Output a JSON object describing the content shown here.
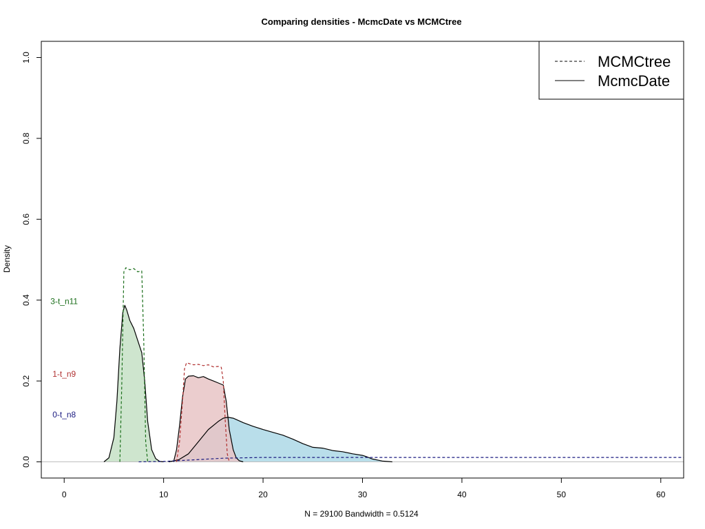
{
  "chart_data": {
    "type": "area",
    "title": "Comparing densities - McmcDate vs MCMCtree",
    "xlabel": "N = 29100   Bandwidth = 0.5124",
    "ylabel": "Density",
    "xlim": [
      -2.3,
      62.3
    ],
    "ylim": [
      -0.04,
      1.04
    ],
    "x_ticks": [
      0,
      10,
      20,
      30,
      40,
      50,
      60
    ],
    "y_ticks": [
      0.0,
      0.2,
      0.4,
      0.6,
      0.8,
      1.0
    ],
    "grid": false,
    "baseline": 0,
    "legend": {
      "position": "top-right",
      "entries": [
        {
          "label": "MCMCtree",
          "line": "dashed"
        },
        {
          "label": "McmcDate",
          "line": "solid"
        }
      ]
    },
    "annotations": [
      {
        "text": "3-t_n11",
        "x": 0,
        "y": 0.39,
        "color": "#1a6e1a"
      },
      {
        "text": "1-t_n9",
        "x": 0,
        "y": 0.21,
        "color": "#b03030"
      },
      {
        "text": "0-t_n8",
        "x": 0,
        "y": 0.11,
        "color": "#1a1a80"
      }
    ],
    "series": [
      {
        "id": "mcmcdate-0-t_n8",
        "node": "0-t_n8",
        "method": "McmcDate",
        "line": "solid",
        "stroke": "#000000",
        "fill": "#add8e6",
        "x": [
          10.5,
          11.5,
          12.5,
          13.5,
          14.5,
          15.5,
          16.0,
          16.5,
          17.0,
          18.0,
          19.0,
          20.0,
          21.0,
          22.0,
          23.0,
          24.0,
          25.0,
          26.0,
          27.0,
          28.0,
          29.0,
          30.0,
          30.5,
          31.0,
          32.0,
          33.0
        ],
        "y": [
          0.0,
          0.005,
          0.02,
          0.05,
          0.08,
          0.1,
          0.108,
          0.11,
          0.108,
          0.097,
          0.088,
          0.08,
          0.073,
          0.066,
          0.056,
          0.045,
          0.036,
          0.034,
          0.028,
          0.025,
          0.02,
          0.016,
          0.012,
          0.007,
          0.002,
          0.0
        ]
      },
      {
        "id": "mcmcdate-1-t_n9",
        "node": "1-t_n9",
        "method": "McmcDate",
        "line": "solid",
        "stroke": "#000000",
        "fill": "#e8c4c6",
        "x": [
          11.0,
          11.3,
          11.6,
          11.9,
          12.2,
          12.5,
          13.0,
          13.5,
          14.0,
          14.5,
          15.0,
          15.5,
          16.0,
          16.3,
          16.6,
          17.0,
          17.3,
          17.6,
          18.0
        ],
        "y": [
          0.0,
          0.03,
          0.09,
          0.16,
          0.205,
          0.212,
          0.213,
          0.208,
          0.211,
          0.205,
          0.2,
          0.195,
          0.19,
          0.15,
          0.08,
          0.03,
          0.01,
          0.003,
          0.0
        ]
      },
      {
        "id": "mcmcdate-3-t_n11",
        "node": "3-t_n11",
        "method": "McmcDate",
        "line": "solid",
        "stroke": "#000000",
        "fill": "#c5e0c5",
        "x": [
          4.0,
          4.5,
          5.0,
          5.3,
          5.6,
          5.9,
          6.1,
          6.3,
          6.6,
          7.0,
          7.4,
          7.8,
          8.1,
          8.4,
          8.8,
          9.2,
          9.6,
          10.0
        ],
        "y": [
          0.0,
          0.01,
          0.06,
          0.15,
          0.28,
          0.37,
          0.387,
          0.375,
          0.35,
          0.33,
          0.3,
          0.27,
          0.2,
          0.1,
          0.03,
          0.008,
          0.001,
          0.0
        ]
      },
      {
        "id": "mcmctree-0-t_n8",
        "node": "0-t_n8",
        "method": "MCMCtree",
        "line": "dashed",
        "stroke": "#1a1a80",
        "fill": "none",
        "x": [
          7.5,
          10.0,
          13.0,
          16.0,
          20.0,
          30.0,
          40.0,
          50.0,
          62.3
        ],
        "y": [
          0.0,
          0.001,
          0.005,
          0.009,
          0.011,
          0.011,
          0.011,
          0.011,
          0.011
        ]
      },
      {
        "id": "mcmctree-1-t_n9",
        "node": "1-t_n9",
        "method": "MCMCtree",
        "line": "dashed",
        "stroke": "#b03030",
        "fill": "none",
        "x": [
          11.3,
          11.6,
          11.9,
          12.1,
          12.3,
          13.0,
          13.5,
          14.0,
          14.5,
          15.0,
          15.5,
          15.8,
          16.0,
          16.2,
          16.4,
          16.6
        ],
        "y": [
          0.0,
          0.05,
          0.15,
          0.23,
          0.245,
          0.24,
          0.241,
          0.238,
          0.24,
          0.235,
          0.236,
          0.234,
          0.2,
          0.1,
          0.02,
          0.0
        ]
      },
      {
        "id": "mcmctree-3-t_n11",
        "node": "3-t_n11",
        "method": "MCMCtree",
        "line": "dashed",
        "stroke": "#1a6e1a",
        "fill": "none",
        "x": [
          5.6,
          5.8,
          6.0,
          6.2,
          6.6,
          7.0,
          7.4,
          7.8,
          8.0,
          8.2,
          8.4
        ],
        "y": [
          0.0,
          0.2,
          0.47,
          0.48,
          0.475,
          0.478,
          0.47,
          0.472,
          0.3,
          0.05,
          0.0
        ]
      }
    ]
  }
}
